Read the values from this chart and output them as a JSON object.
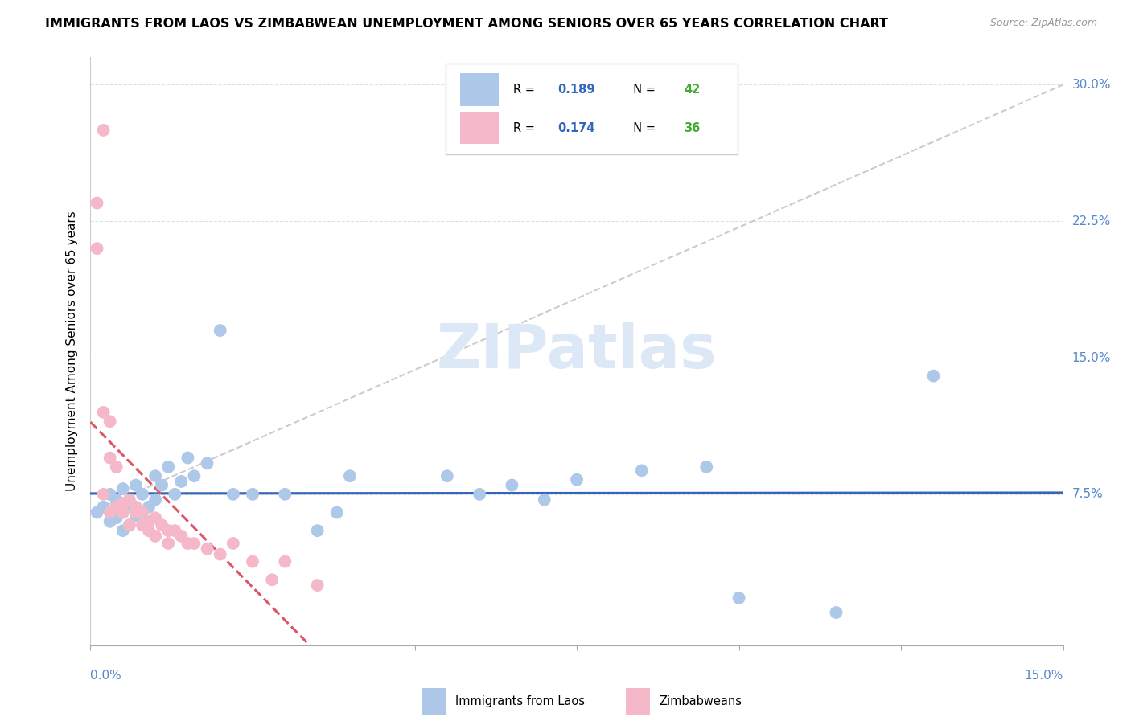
{
  "title": "IMMIGRANTS FROM LAOS VS ZIMBABWEAN UNEMPLOYMENT AMONG SENIORS OVER 65 YEARS CORRELATION CHART",
  "source": "Source: ZipAtlas.com",
  "ylabel": "Unemployment Among Seniors over 65 years",
  "xlim": [
    0.0,
    0.15
  ],
  "ylim": [
    -0.008,
    0.315
  ],
  "yticks": [
    0.075,
    0.15,
    0.225,
    0.3
  ],
  "ytick_labels": [
    "7.5%",
    "15.0%",
    "22.5%",
    "30.0%"
  ],
  "xticks": [
    0.0,
    0.025,
    0.05,
    0.075,
    0.1,
    0.125,
    0.15
  ],
  "laos_color": "#adc8e8",
  "zim_color": "#f5b8c8",
  "laos_line_color": "#3366bb",
  "zim_line_color": "#dd5566",
  "diagonal_color": "#cccccc",
  "watermark": "ZIPatlas",
  "watermark_color": "#dce8f5",
  "tick_color": "#5588cc",
  "grid_color": "#e0e0e0",
  "laos_label": "Immigrants from Laos",
  "zim_label": "Zimbabweans",
  "legend_R1": "0.189",
  "legend_N1": "42",
  "legend_R2": "0.174",
  "legend_N2": "36",
  "R_color": "#3366bb",
  "N_color": "#44aa33",
  "laos_x": [
    0.001,
    0.002,
    0.003,
    0.003,
    0.004,
    0.004,
    0.005,
    0.005,
    0.005,
    0.006,
    0.006,
    0.007,
    0.007,
    0.008,
    0.008,
    0.009,
    0.01,
    0.01,
    0.011,
    0.012,
    0.013,
    0.014,
    0.015,
    0.016,
    0.018,
    0.02,
    0.022,
    0.025,
    0.03,
    0.035,
    0.038,
    0.04,
    0.055,
    0.06,
    0.065,
    0.07,
    0.075,
    0.085,
    0.095,
    0.1,
    0.115,
    0.13
  ],
  "laos_y": [
    0.065,
    0.068,
    0.06,
    0.075,
    0.062,
    0.072,
    0.055,
    0.065,
    0.078,
    0.058,
    0.07,
    0.063,
    0.08,
    0.065,
    0.075,
    0.068,
    0.072,
    0.085,
    0.08,
    0.09,
    0.075,
    0.082,
    0.095,
    0.085,
    0.092,
    0.165,
    0.075,
    0.075,
    0.075,
    0.055,
    0.065,
    0.085,
    0.085,
    0.075,
    0.08,
    0.072,
    0.083,
    0.088,
    0.09,
    0.018,
    0.01,
    0.14
  ],
  "zim_x": [
    0.001,
    0.001,
    0.002,
    0.002,
    0.002,
    0.003,
    0.003,
    0.003,
    0.004,
    0.004,
    0.005,
    0.005,
    0.006,
    0.006,
    0.007,
    0.007,
    0.008,
    0.008,
    0.009,
    0.009,
    0.01,
    0.01,
    0.011,
    0.012,
    0.012,
    0.013,
    0.014,
    0.015,
    0.016,
    0.018,
    0.02,
    0.022,
    0.025,
    0.028,
    0.03,
    0.035
  ],
  "zim_y": [
    0.235,
    0.21,
    0.275,
    0.12,
    0.075,
    0.115,
    0.095,
    0.065,
    0.09,
    0.068,
    0.07,
    0.065,
    0.058,
    0.072,
    0.065,
    0.068,
    0.058,
    0.065,
    0.06,
    0.055,
    0.062,
    0.052,
    0.058,
    0.055,
    0.048,
    0.055,
    0.052,
    0.048,
    0.048,
    0.045,
    0.042,
    0.048,
    0.038,
    0.028,
    0.038,
    0.025
  ]
}
